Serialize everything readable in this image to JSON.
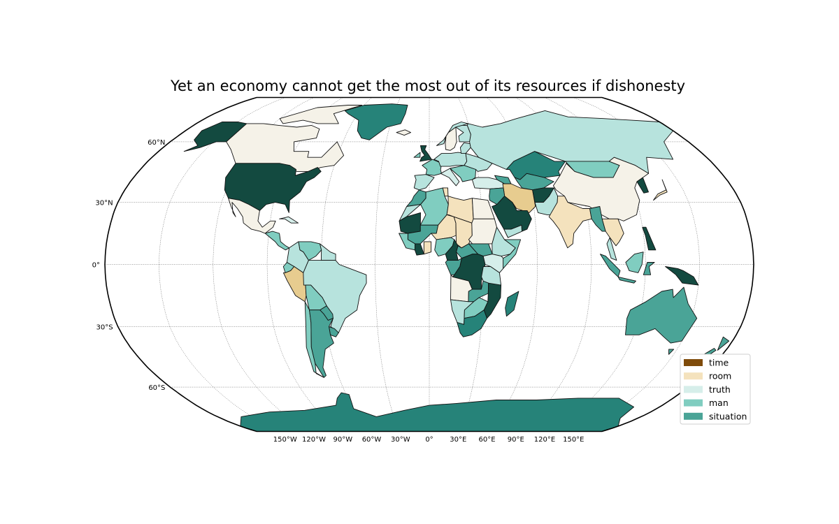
{
  "map": {
    "title": "Yet an economy cannot get the most out of its resources if dishonesty",
    "projection": "robinson",
    "lat_labels": [
      {
        "lat": 60,
        "text": "60°N"
      },
      {
        "lat": 30,
        "text": "30°N"
      },
      {
        "lat": 0,
        "text": "0°"
      },
      {
        "lat": -30,
        "text": "30°S"
      },
      {
        "lat": -60,
        "text": "60°S"
      }
    ],
    "lon_labels": [
      {
        "lon": -150,
        "text": "150°W"
      },
      {
        "lon": -120,
        "text": "120°W"
      },
      {
        "lon": -90,
        "text": "90°W"
      },
      {
        "lon": -60,
        "text": "60°W"
      },
      {
        "lon": -30,
        "text": "30°W"
      },
      {
        "lon": 0,
        "text": "0°"
      },
      {
        "lon": 30,
        "text": "30°E"
      },
      {
        "lon": 60,
        "text": "60°E"
      },
      {
        "lon": 90,
        "text": "90°E"
      },
      {
        "lon": 120,
        "text": "120°E"
      },
      {
        "lon": 150,
        "text": "150°E"
      }
    ],
    "palette": {
      "pale": "#f5f2e8",
      "time": "#7f4b0a",
      "room": "#f4e2bd",
      "room_dark": "#e7cc8f",
      "truth": "#d6eeea",
      "light_teal": "#b7e3dd",
      "man": "#80cdc0",
      "situation": "#4aa497",
      "deep_teal": "#268379",
      "darkest": "#134a40"
    },
    "legend": [
      {
        "label": "time",
        "color": "#7f4b0a"
      },
      {
        "label": "room",
        "color": "#f4e2bd"
      },
      {
        "label": "truth",
        "color": "#d6eeea"
      },
      {
        "label": "man",
        "color": "#80cdc0"
      },
      {
        "label": "situation",
        "color": "#4aa497"
      }
    ]
  }
}
